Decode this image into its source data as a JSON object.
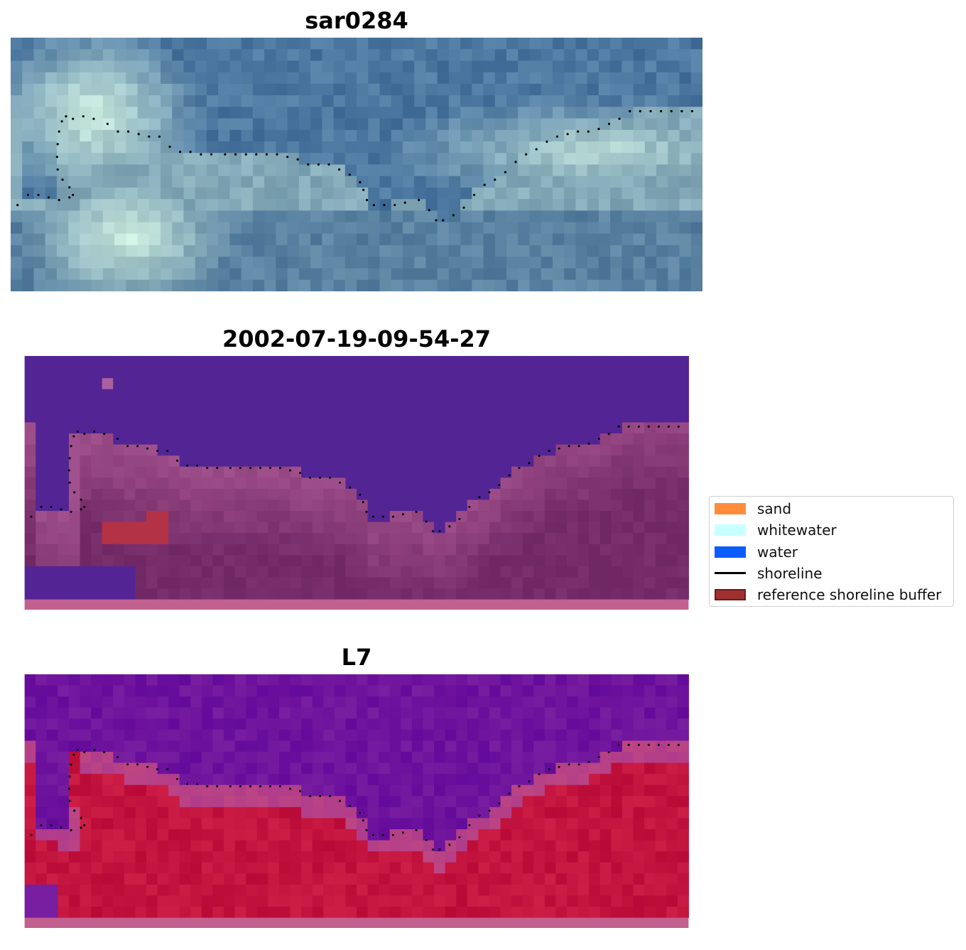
{
  "panels": [
    {
      "title": "sar0284",
      "kind": "rgb"
    },
    {
      "title": "2002-07-19-09-54-27",
      "kind": "classified"
    },
    {
      "title": "L7",
      "kind": "index"
    }
  ],
  "legend": {
    "items": [
      {
        "label": "sand",
        "type": "patch",
        "color": "#ff8c3a"
      },
      {
        "label": "whitewater",
        "type": "patch",
        "color": "#c8ffff"
      },
      {
        "label": "water",
        "type": "patch",
        "color": "#0a5cff"
      },
      {
        "label": "shoreline",
        "type": "line",
        "color": "#000000"
      },
      {
        "label": "reference shoreline buffer",
        "type": "patch",
        "color": "#a03030",
        "edge": "#6e1a1a"
      }
    ]
  },
  "shoreline_points_normalized": [
    [
      0.01,
      0.66
    ],
    [
      0.025,
      0.62
    ],
    [
      0.04,
      0.62
    ],
    [
      0.055,
      0.63
    ],
    [
      0.07,
      0.64
    ],
    [
      0.085,
      0.63
    ],
    [
      0.09,
      0.62
    ],
    [
      0.085,
      0.59
    ],
    [
      0.075,
      0.56
    ],
    [
      0.068,
      0.52
    ],
    [
      0.067,
      0.47
    ],
    [
      0.068,
      0.42
    ],
    [
      0.07,
      0.37
    ],
    [
      0.074,
      0.33
    ],
    [
      0.08,
      0.31
    ],
    [
      0.09,
      0.32
    ],
    [
      0.105,
      0.31
    ],
    [
      0.12,
      0.32
    ],
    [
      0.14,
      0.34
    ],
    [
      0.155,
      0.37
    ],
    [
      0.17,
      0.37
    ],
    [
      0.185,
      0.38
    ],
    [
      0.2,
      0.39
    ],
    [
      0.215,
      0.39
    ],
    [
      0.23,
      0.43
    ],
    [
      0.245,
      0.45
    ],
    [
      0.26,
      0.45
    ],
    [
      0.275,
      0.46
    ],
    [
      0.29,
      0.46
    ],
    [
      0.31,
      0.46
    ],
    [
      0.325,
      0.46
    ],
    [
      0.34,
      0.46
    ],
    [
      0.355,
      0.46
    ],
    [
      0.37,
      0.46
    ],
    [
      0.385,
      0.46
    ],
    [
      0.4,
      0.47
    ],
    [
      0.415,
      0.48
    ],
    [
      0.43,
      0.5
    ],
    [
      0.445,
      0.5
    ],
    [
      0.46,
      0.5
    ],
    [
      0.475,
      0.52
    ],
    [
      0.49,
      0.54
    ],
    [
      0.505,
      0.57
    ],
    [
      0.51,
      0.6
    ],
    [
      0.515,
      0.64
    ],
    [
      0.525,
      0.66
    ],
    [
      0.54,
      0.66
    ],
    [
      0.555,
      0.66
    ],
    [
      0.57,
      0.65
    ],
    [
      0.59,
      0.64
    ],
    [
      0.605,
      0.68
    ],
    [
      0.615,
      0.72
    ],
    [
      0.625,
      0.72
    ],
    [
      0.64,
      0.7
    ],
    [
      0.655,
      0.67
    ],
    [
      0.67,
      0.62
    ],
    [
      0.685,
      0.58
    ],
    [
      0.7,
      0.56
    ],
    [
      0.715,
      0.53
    ],
    [
      0.73,
      0.49
    ],
    [
      0.745,
      0.46
    ],
    [
      0.76,
      0.44
    ],
    [
      0.775,
      0.41
    ],
    [
      0.79,
      0.39
    ],
    [
      0.805,
      0.38
    ],
    [
      0.82,
      0.37
    ],
    [
      0.835,
      0.37
    ],
    [
      0.85,
      0.36
    ],
    [
      0.865,
      0.34
    ],
    [
      0.88,
      0.32
    ],
    [
      0.895,
      0.29
    ],
    [
      0.91,
      0.29
    ],
    [
      0.925,
      0.29
    ],
    [
      0.94,
      0.29
    ],
    [
      0.955,
      0.29
    ],
    [
      0.97,
      0.29
    ],
    [
      0.985,
      0.29
    ]
  ]
}
